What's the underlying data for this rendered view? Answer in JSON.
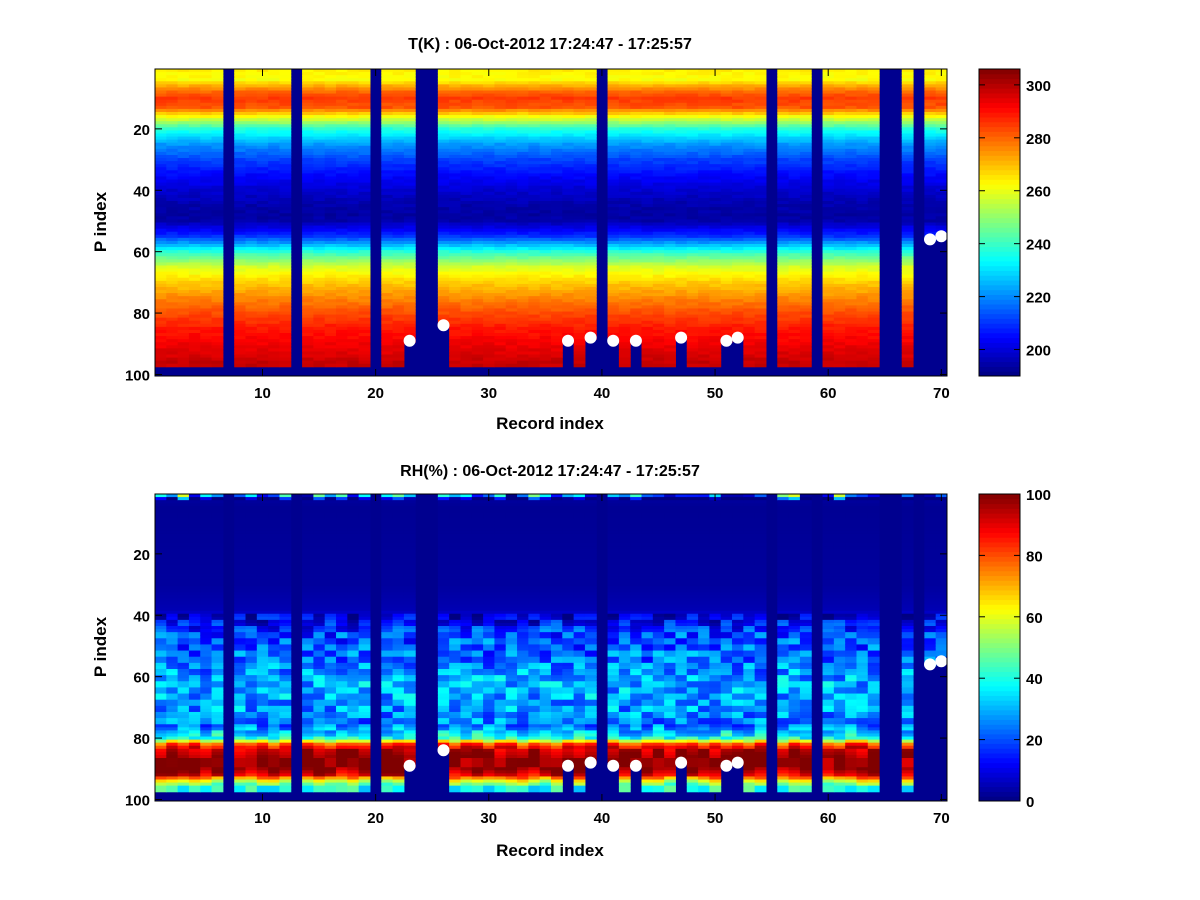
{
  "figure": {
    "background": "#ffffff",
    "marker_color": "#ffffff",
    "fill_color": "#00008f"
  },
  "chart_data": [
    {
      "type": "heatmap",
      "title": "T(K) : 06-Oct-2012 17:24:47 - 17:25:57",
      "xlabel": "Record index",
      "ylabel": "P index",
      "xlim": [
        0.5,
        70.5
      ],
      "ylim": [
        0.5,
        100.5
      ],
      "xticks": [
        10,
        20,
        30,
        40,
        50,
        60,
        70
      ],
      "yticks": [
        20,
        40,
        60,
        80,
        100
      ],
      "colorbar": {
        "min": 190,
        "max": 306,
        "ticks": [
          200,
          220,
          240,
          260,
          280,
          300
        ]
      },
      "profile": {
        "p": [
          1,
          4,
          6,
          8,
          10,
          13,
          16,
          20,
          25,
          30,
          35,
          40,
          45,
          48,
          50,
          55,
          60,
          65,
          70,
          75,
          80,
          85,
          90,
          94,
          96
        ],
        "v": [
          264,
          262,
          272,
          280,
          285,
          282,
          262,
          238,
          222,
          212,
          205,
          199,
          195,
          194,
          195,
          210,
          238,
          258,
          268,
          276,
          283,
          289,
          293,
          296,
          298
        ]
      },
      "gap_records": [
        7,
        13,
        20,
        24,
        25,
        40,
        55,
        59,
        65,
        66,
        68
      ],
      "surface": [
        97,
        97,
        97,
        97,
        97,
        97,
        97,
        97,
        97,
        97,
        97,
        97,
        97,
        97,
        97,
        97,
        97,
        97,
        97,
        97,
        97,
        97,
        89,
        98,
        98,
        84,
        97,
        97,
        97,
        97,
        97,
        97,
        97,
        97,
        97,
        97,
        89,
        97,
        88,
        97,
        89,
        97,
        89,
        97,
        97,
        97,
        88,
        97,
        97,
        97,
        89,
        88,
        97,
        97,
        97,
        97,
        97,
        97,
        97,
        97,
        97,
        97,
        97,
        97,
        97,
        97,
        97,
        97,
        56,
        55
      ],
      "markers": [
        {
          "x": 23,
          "y": 89
        },
        {
          "x": 26,
          "y": 84
        },
        {
          "x": 37,
          "y": 89
        },
        {
          "x": 39,
          "y": 88
        },
        {
          "x": 41,
          "y": 89
        },
        {
          "x": 43,
          "y": 89
        },
        {
          "x": 47,
          "y": 88
        },
        {
          "x": 51,
          "y": 89
        },
        {
          "x": 52,
          "y": 88
        },
        {
          "x": 69,
          "y": 56
        },
        {
          "x": 70,
          "y": 55
        }
      ]
    },
    {
      "type": "heatmap",
      "title": "RH(%) : 06-Oct-2012 17:24:47 - 17:25:57",
      "xlabel": "Record index",
      "ylabel": "P index",
      "xlim": [
        0.5,
        70.5
      ],
      "ylim": [
        0.5,
        100.5
      ],
      "xticks": [
        10,
        20,
        30,
        40,
        50,
        60,
        70
      ],
      "yticks": [
        20,
        40,
        60,
        80,
        100
      ],
      "colorbar": {
        "min": 0,
        "max": 100,
        "ticks": [
          0,
          20,
          40,
          60,
          80,
          100
        ]
      },
      "profile": {
        "p": [
          1,
          2,
          5,
          30,
          38,
          42,
          46,
          55,
          62,
          70,
          76,
          80,
          82,
          84,
          86,
          90,
          92,
          94,
          96
        ],
        "v": [
          30,
          3,
          2,
          3,
          5,
          12,
          20,
          24,
          30,
          28,
          24,
          40,
          80,
          95,
          99,
          99,
          90,
          60,
          40
        ]
      },
      "gap_records": [
        7,
        13,
        20,
        24,
        25,
        40,
        55,
        59,
        65,
        66,
        68
      ],
      "surface": [
        97,
        97,
        97,
        97,
        97,
        97,
        97,
        97,
        97,
        97,
        97,
        97,
        97,
        97,
        97,
        97,
        97,
        97,
        97,
        97,
        97,
        97,
        89,
        98,
        98,
        84,
        97,
        97,
        97,
        97,
        97,
        97,
        97,
        97,
        97,
        97,
        89,
        97,
        88,
        97,
        89,
        97,
        89,
        97,
        97,
        97,
        88,
        97,
        97,
        97,
        89,
        88,
        97,
        97,
        97,
        97,
        97,
        97,
        97,
        97,
        97,
        97,
        97,
        97,
        97,
        97,
        97,
        97,
        56,
        55
      ],
      "markers": [
        {
          "x": 23,
          "y": 89
        },
        {
          "x": 26,
          "y": 84
        },
        {
          "x": 37,
          "y": 89
        },
        {
          "x": 39,
          "y": 88
        },
        {
          "x": 41,
          "y": 89
        },
        {
          "x": 43,
          "y": 89
        },
        {
          "x": 47,
          "y": 88
        },
        {
          "x": 51,
          "y": 89
        },
        {
          "x": 52,
          "y": 88
        },
        {
          "x": 69,
          "y": 56
        },
        {
          "x": 70,
          "y": 55
        }
      ]
    }
  ]
}
